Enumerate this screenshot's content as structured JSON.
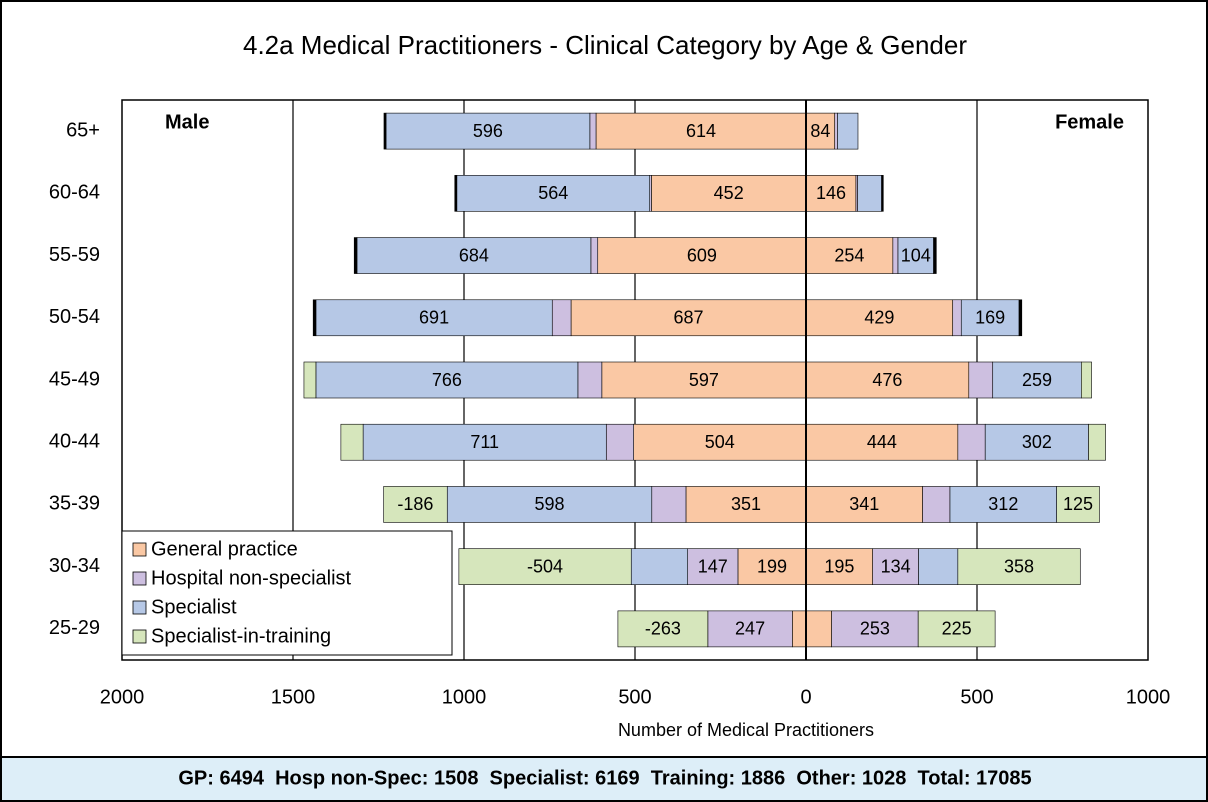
{
  "chart_data": {
    "type": "pyramid",
    "title": "4.2a Medical Practitioners - Clinical Category by Age & Gender",
    "x_label": "Number of Medical Practitioners",
    "left_label": "Male",
    "right_label": "Female",
    "categories": [
      "65+",
      "60-64",
      "55-59",
      "50-54",
      "45-49",
      "40-44",
      "35-39",
      "30-34",
      "25-29"
    ],
    "xlim": [
      -2000,
      1000
    ],
    "xticks": [
      {
        "value": -2000,
        "label": "2000"
      },
      {
        "value": -1500,
        "label": "1500"
      },
      {
        "value": -1000,
        "label": "1000"
      },
      {
        "value": -500,
        "label": "500"
      },
      0,
      500,
      1000
    ],
    "grid": true,
    "series": [
      {
        "name": "General practice",
        "color": "#fac8a4",
        "male": [
          -614,
          -452,
          -609,
          -687,
          -597,
          -504,
          -351,
          -199,
          -40
        ],
        "male_labels": [
          "614",
          "452",
          "609",
          "687",
          "597",
          "504",
          "351",
          "199",
          null
        ],
        "female": [
          84,
          146,
          254,
          429,
          476,
          444,
          341,
          195,
          75
        ],
        "female_labels": [
          "84",
          "146",
          "254",
          "429",
          "476",
          "444",
          "341",
          "195",
          null
        ]
      },
      {
        "name": "Hospital non-specialist",
        "color": "#cdbfe0",
        "male": [
          -18,
          -5,
          -20,
          -55,
          -70,
          -80,
          -100,
          -147,
          -247
        ],
        "male_labels": [
          null,
          null,
          null,
          null,
          null,
          null,
          null,
          "147",
          "247"
        ],
        "female": [
          8,
          5,
          15,
          25,
          70,
          80,
          80,
          134,
          253
        ],
        "female_labels": [
          null,
          null,
          null,
          null,
          null,
          null,
          null,
          "134",
          "253"
        ]
      },
      {
        "name": "Specialist",
        "color": "#b6c8e6",
        "male": [
          -596,
          -564,
          -684,
          -691,
          -766,
          -711,
          -598,
          -165,
          0
        ],
        "male_labels": [
          "596",
          "564",
          "684",
          "691",
          "766",
          "711",
          "598",
          null,
          null
        ],
        "female": [
          60,
          70,
          104,
          169,
          259,
          302,
          312,
          115,
          0
        ],
        "female_labels": [
          null,
          null,
          "104",
          "169",
          "259",
          "302",
          "312",
          null,
          null
        ]
      },
      {
        "name": "Specialist-in-training",
        "color": "#d6e6bc",
        "male": [
          0,
          0,
          0,
          0,
          -35,
          -65,
          -186,
          -504,
          -263
        ],
        "male_labels": [
          null,
          null,
          null,
          null,
          null,
          null,
          "-186",
          "-504",
          "-263"
        ],
        "female": [
          0,
          0,
          0,
          0,
          30,
          50,
          125,
          358,
          225
        ],
        "female_labels": [
          null,
          null,
          null,
          null,
          null,
          null,
          "125",
          "358",
          "225"
        ]
      },
      {
        "color": "#000000",
        "male": [
          -6,
          -6,
          -8,
          -8,
          0,
          0,
          0,
          0,
          0
        ],
        "female": [
          0,
          5,
          8,
          8,
          0,
          0,
          0,
          0,
          0
        ]
      }
    ],
    "footer": "GP: 6494  Hosp non-Spec: 1508  Specialist: 6169  Training: 1886  Other: 1028  Total: 17085"
  }
}
